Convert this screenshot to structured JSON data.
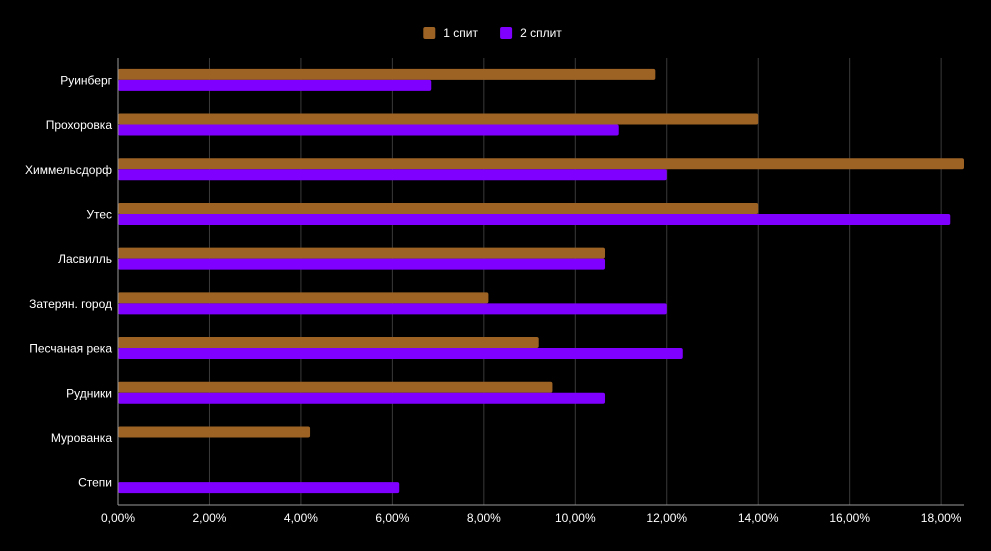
{
  "chart_data": {
    "type": "bar",
    "orientation": "horizontal",
    "categories": [
      "Руинберг",
      "Прохоровка",
      "Химмельсдорф",
      "Утес",
      "Ласвилль",
      "Затерян. город",
      "Песчаная река",
      "Рудники",
      "Мурованка",
      "Степи"
    ],
    "series": [
      {
        "name": "1 спит",
        "color": "#9c6325",
        "values": [
          11.75,
          14.0,
          18.5,
          14.0,
          10.65,
          8.1,
          9.2,
          9.5,
          4.2,
          null
        ]
      },
      {
        "name": "2 сплит",
        "color": "#8000ff",
        "values": [
          6.85,
          10.95,
          12.0,
          18.2,
          10.65,
          12.0,
          12.35,
          10.65,
          null,
          6.15
        ]
      }
    ],
    "xlim": [
      0,
      18.5
    ],
    "xticks": [
      0,
      2,
      4,
      6,
      8,
      10,
      12,
      14,
      16,
      18
    ],
    "xtick_labels": [
      "0,00%",
      "2,00%",
      "4,00%",
      "6,00%",
      "8,00%",
      "10,00%",
      "12,00%",
      "14,00%",
      "16,00%",
      "18,00%"
    ],
    "grid": true,
    "legend_position": "top-center",
    "colors": {
      "background": "#000000",
      "grid": "#3a3a3a",
      "axis": "#9a9a9a",
      "text": "#ffffff"
    }
  }
}
